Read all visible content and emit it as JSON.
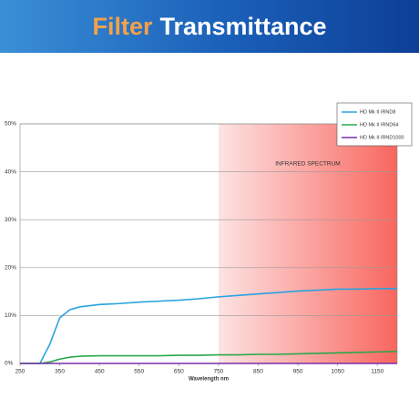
{
  "header": {
    "title_highlight": "Filter",
    "title": "Transmittance"
  },
  "chart_data": {
    "type": "line",
    "x_label": "Wavelength nm",
    "x": [
      250,
      275,
      300,
      325,
      350,
      375,
      400,
      450,
      500,
      550,
      600,
      650,
      700,
      750,
      800,
      850,
      900,
      950,
      1000,
      1050,
      1100,
      1150,
      1200
    ],
    "series": [
      {
        "name": "HD Mk II IRND8",
        "color": "#29a3e0",
        "values": [
          0,
          0,
          0,
          4,
          9.5,
          11.2,
          11.8,
          12.3,
          12.5,
          12.8,
          13.0,
          13.2,
          13.5,
          13.9,
          14.2,
          14.5,
          14.8,
          15.1,
          15.3,
          15.5,
          15.5,
          15.6,
          15.6
        ]
      },
      {
        "name": "HD Mk II IRND64",
        "color": "#2aa84a",
        "values": [
          0,
          0,
          0,
          0.3,
          0.9,
          1.3,
          1.5,
          1.6,
          1.6,
          1.6,
          1.6,
          1.7,
          1.7,
          1.8,
          1.8,
          1.9,
          1.9,
          2.0,
          2.1,
          2.2,
          2.3,
          2.4,
          2.5
        ]
      },
      {
        "name": "HD Mk II IRND1000",
        "color": "#7b2fa8",
        "values": [
          0,
          0,
          0,
          0,
          0,
          0,
          0,
          0,
          0,
          0,
          0,
          0,
          0,
          0,
          0,
          0,
          0,
          0,
          0,
          0,
          0,
          0,
          0
        ]
      }
    ],
    "xlim": [
      250,
      1200
    ],
    "xticks": [
      250,
      350,
      450,
      550,
      650,
      750,
      850,
      950,
      1050,
      1150
    ],
    "ylim": [
      0,
      50
    ],
    "yticks": [
      {
        "value": 0,
        "label": "0%"
      },
      {
        "value": 10,
        "label": "10%"
      },
      {
        "value": 20,
        "label": "20%"
      },
      {
        "value": 30,
        "label": "30%"
      },
      {
        "value": 40,
        "label": "40%"
      },
      {
        "value": 50,
        "label": "50%"
      }
    ],
    "grid": true,
    "legend": "upper right",
    "shaded_region": {
      "label": "INFRARED SPECTRUM",
      "xlim": [
        750,
        1200
      ]
    }
  }
}
